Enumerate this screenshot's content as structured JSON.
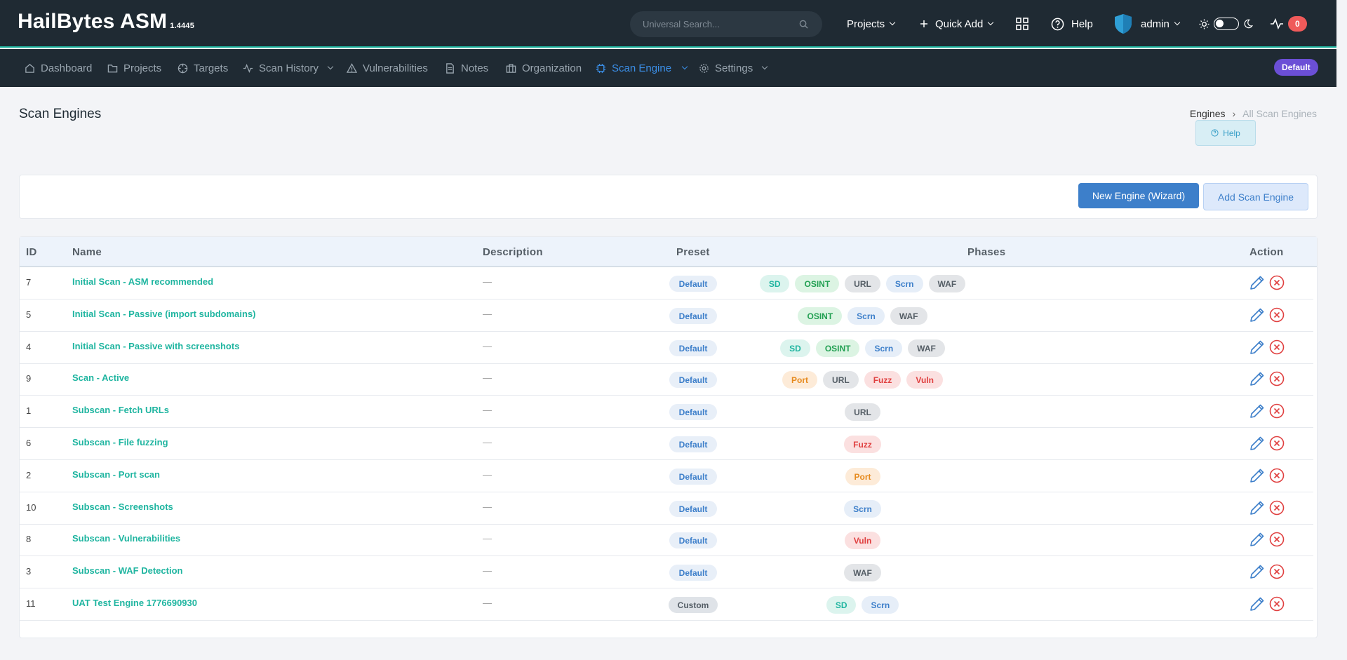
{
  "brand": {
    "name": "HailBytes ASM",
    "version": "1.4445"
  },
  "topbar": {
    "search_placeholder": "Universal Search...",
    "projects_label": "Projects",
    "quick_add_label": "Quick Add",
    "help_label": "Help",
    "user_label": "admin",
    "alerts_count": "0"
  },
  "nav": {
    "items": [
      {
        "label": "Dashboard"
      },
      {
        "label": "Projects"
      },
      {
        "label": "Targets"
      },
      {
        "label": "Scan History"
      },
      {
        "label": "Vulnerabilities"
      },
      {
        "label": "Notes"
      },
      {
        "label": "Organization"
      },
      {
        "label": "Scan Engine"
      },
      {
        "label": "Settings"
      }
    ],
    "active": "Scan Engine",
    "project_badge": "Default"
  },
  "page": {
    "title": "Scan Engines",
    "breadcrumb": [
      "Engines",
      "All Scan Engines"
    ],
    "help_label": "Help",
    "new_engine_label": "New Engine (Wizard)",
    "add_engine_label": "Add Scan Engine"
  },
  "table": {
    "headers": [
      "ID",
      "Name",
      "Description",
      "Preset",
      "Phases",
      "Action"
    ],
    "rows": [
      {
        "id": "7",
        "name": "Initial Scan - ASM recommended",
        "description": "—",
        "preset": "Default",
        "phases": [
          "SD",
          "OSINT",
          "URL",
          "Scrn",
          "WAF"
        ]
      },
      {
        "id": "5",
        "name": "Initial Scan - Passive (import subdomains)",
        "description": "—",
        "preset": "Default",
        "phases": [
          "OSINT",
          "Scrn",
          "WAF"
        ]
      },
      {
        "id": "4",
        "name": "Initial Scan - Passive with screenshots",
        "description": "—",
        "preset": "Default",
        "phases": [
          "SD",
          "OSINT",
          "Scrn",
          "WAF"
        ]
      },
      {
        "id": "9",
        "name": "Scan - Active",
        "description": "—",
        "preset": "Default",
        "phases": [
          "Port",
          "URL",
          "Fuzz",
          "Vuln"
        ]
      },
      {
        "id": "1",
        "name": "Subscan - Fetch URLs",
        "description": "—",
        "preset": "Default",
        "phases": [
          "URL"
        ]
      },
      {
        "id": "6",
        "name": "Subscan - File fuzzing",
        "description": "—",
        "preset": "Default",
        "phases": [
          "Fuzz"
        ]
      },
      {
        "id": "2",
        "name": "Subscan - Port scan",
        "description": "—",
        "preset": "Default",
        "phases": [
          "Port"
        ]
      },
      {
        "id": "10",
        "name": "Subscan - Screenshots",
        "description": "—",
        "preset": "Default",
        "phases": [
          "Scrn"
        ]
      },
      {
        "id": "8",
        "name": "Subscan - Vulnerabilities",
        "description": "—",
        "preset": "Default",
        "phases": [
          "Vuln"
        ]
      },
      {
        "id": "3",
        "name": "Subscan - WAF Detection",
        "description": "—",
        "preset": "Default",
        "phases": [
          "WAF"
        ]
      },
      {
        "id": "11",
        "name": "UAT Test Engine 1776690930",
        "description": "—",
        "preset": "Custom",
        "phases": [
          "SD",
          "Scrn"
        ]
      }
    ]
  },
  "colors": {
    "accent": "#1fb5a0",
    "primary": "#3d7fca",
    "danger": "#e04040",
    "nav_bg": "#1f2a33"
  }
}
